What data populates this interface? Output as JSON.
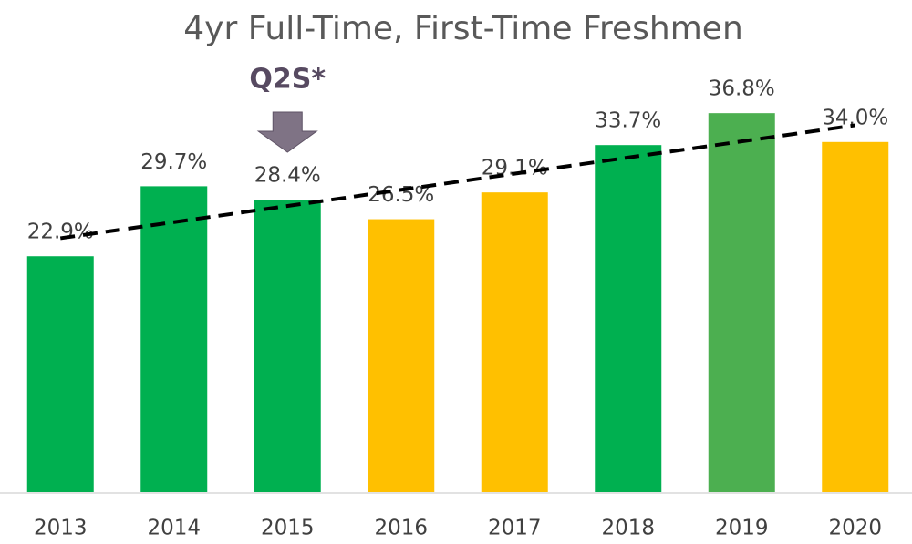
{
  "chart_data": {
    "type": "bar",
    "title": "4yr Full-Time, First-Time Freshmen",
    "categories": [
      "2013",
      "2014",
      "2015",
      "2016",
      "2017",
      "2018",
      "2019",
      "2020"
    ],
    "values": [
      22.9,
      29.7,
      28.4,
      26.5,
      29.1,
      33.7,
      36.8,
      34.0
    ],
    "value_labels": [
      "22.9%",
      "29.7%",
      "28.4%",
      "26.5%",
      "29.1%",
      "33.7%",
      "36.8%",
      "34.0%"
    ],
    "colors": [
      "#00b050",
      "#00b050",
      "#00b050",
      "#ffc000",
      "#ffc000",
      "#00b050",
      "#4caf50",
      "#ffc000"
    ],
    "ylim": [
      0,
      40
    ],
    "trendline": "linear",
    "annotations": [
      {
        "text": "Q2S*",
        "category": "2015"
      }
    ]
  }
}
